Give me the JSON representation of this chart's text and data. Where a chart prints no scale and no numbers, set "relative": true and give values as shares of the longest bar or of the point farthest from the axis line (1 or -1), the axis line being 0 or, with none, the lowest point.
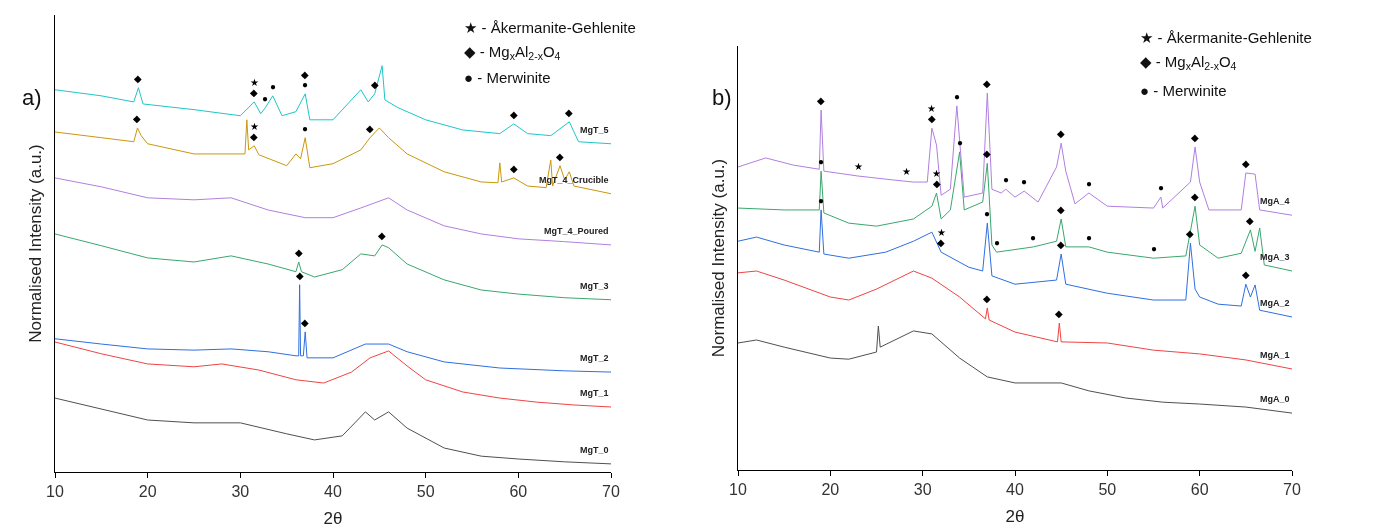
{
  "chart_data": [
    {
      "type": "line",
      "title": "a)",
      "xlabel": "2θ",
      "ylabel": "Normalised Intensity (a.u.)",
      "relative": true,
      "legend": false,
      "grid": false,
      "xlim": [
        10,
        70
      ],
      "xticks": [
        10,
        20,
        30,
        40,
        50,
        60,
        70
      ],
      "annotations": [
        "★ - Åkermanite-Gehlenite",
        "◆ - Mg$_{x}$Al$_{2-x}$O$_{4}$",
        "● - Merwinite",
        {
          "text": "◆",
          "x": 19,
          "y": 0.946
        },
        {
          "text": "◆",
          "x": 31.5,
          "y": 0.911
        },
        {
          "text": "★",
          "x": 31.5,
          "y": 0.911
        },
        {
          "text": "●",
          "x": 32.7,
          "y": 0.897
        },
        {
          "text": "●",
          "x": 33.5,
          "y": 0.926
        },
        {
          "text": "●",
          "x": 37,
          "y": 0.931
        },
        {
          "text": "◆",
          "x": 37,
          "y": 0.931
        },
        {
          "text": "◆",
          "x": 44.5,
          "y": 0.931
        },
        {
          "text": "◆",
          "x": 59.5,
          "y": 0.857
        },
        {
          "text": "◆",
          "x": 65.5,
          "y": 0.862
        },
        {
          "text": "◆",
          "x": 18.9,
          "y": 0.847
        },
        {
          "text": "◆",
          "x": 31.5,
          "y": 0.803
        },
        {
          "text": "★",
          "x": 31.5,
          "y": 0.803
        },
        {
          "text": "●",
          "x": 37,
          "y": 0.823
        },
        {
          "text": "◆",
          "x": 44,
          "y": 0.823
        },
        {
          "text": "◆",
          "x": 59.5,
          "y": 0.724
        },
        {
          "text": "◆",
          "x": 64.5,
          "y": 0.754
        },
        {
          "text": "◆",
          "x": 36.3,
          "y": 0.517
        },
        {
          "text": "◆",
          "x": 45.3,
          "y": 0.559
        },
        {
          "text": "◆",
          "x": 36.4,
          "y": 0.461
        },
        {
          "text": "◆",
          "x": 37,
          "y": 0.345
        }
      ],
      "series": [
        {
          "name": "MgT_0",
          "color": "#505050",
          "x": [
            10,
            20,
            25,
            30,
            35,
            38,
            41,
            43.5,
            44.5,
            46,
            48,
            52,
            56,
            60,
            65,
            70
          ],
          "values": [
            0.182,
            0.128,
            0.121,
            0.121,
            0.094,
            0.079,
            0.089,
            0.148,
            0.128,
            0.148,
            0.108,
            0.059,
            0.039,
            0.032,
            0.025,
            0.02
          ]
        },
        {
          "name": "MgT_1",
          "color": "#ef4444",
          "x": [
            10,
            15,
            20,
            25,
            28,
            32,
            36,
            39,
            42,
            44,
            46,
            48,
            50,
            54,
            58,
            62,
            66,
            70
          ],
          "values": [
            0.32,
            0.291,
            0.266,
            0.259,
            0.266,
            0.251,
            0.227,
            0.219,
            0.246,
            0.281,
            0.298,
            0.261,
            0.227,
            0.197,
            0.182,
            0.172,
            0.165,
            0.16
          ]
        },
        {
          "name": "MgT_2",
          "color": "#2f6fe0",
          "x": [
            10,
            15,
            20,
            25,
            29,
            33,
            36,
            36.3,
            36.4,
            36.5,
            36.8,
            37,
            37.2,
            40,
            43.5,
            46,
            48,
            52,
            58,
            65,
            70
          ],
          "values": [
            0.328,
            0.315,
            0.303,
            0.3,
            0.303,
            0.296,
            0.286,
            0.286,
            0.461,
            0.286,
            0.286,
            0.345,
            0.281,
            0.281,
            0.315,
            0.315,
            0.296,
            0.271,
            0.256,
            0.249,
            0.246
          ]
        },
        {
          "name": "MgT_3",
          "color": "#3aa76d",
          "x": [
            10,
            15,
            20,
            25,
            29,
            33,
            36,
            36.3,
            36.6,
            38,
            41,
            43,
            44.5,
            45.3,
            46,
            48,
            52,
            56,
            60,
            65,
            70
          ],
          "values": [
            0.586,
            0.557,
            0.527,
            0.517,
            0.532,
            0.512,
            0.493,
            0.517,
            0.493,
            0.48,
            0.498,
            0.537,
            0.532,
            0.559,
            0.552,
            0.512,
            0.473,
            0.448,
            0.438,
            0.429,
            0.424
          ]
        },
        {
          "name": "MgT_4_Poured",
          "color": "#b07fe0",
          "x": [
            10,
            15,
            20,
            25,
            29,
            33,
            37,
            40,
            43,
            46,
            48,
            52,
            56,
            60,
            65,
            70
          ],
          "values": [
            0.724,
            0.702,
            0.675,
            0.67,
            0.675,
            0.645,
            0.626,
            0.626,
            0.65,
            0.675,
            0.645,
            0.606,
            0.586,
            0.574,
            0.567,
            0.559
          ]
        },
        {
          "name": "MgT_4_Crucible",
          "color": "#c9980e",
          "x": [
            10,
            15,
            18.5,
            18.9,
            19.3,
            20,
            25,
            30.5,
            30.7,
            30.9,
            31.5,
            32,
            35,
            36,
            36.5,
            37,
            37.5,
            40,
            43,
            44,
            45,
            46,
            48,
            52,
            56,
            57.8,
            58,
            58.2,
            59.5,
            61,
            63,
            63.5,
            63.7,
            64.5,
            65,
            65.5,
            66,
            70
          ],
          "values": [
            0.837,
            0.823,
            0.813,
            0.847,
            0.828,
            0.808,
            0.783,
            0.783,
            0.867,
            0.793,
            0.803,
            0.781,
            0.754,
            0.783,
            0.771,
            0.823,
            0.749,
            0.759,
            0.793,
            0.823,
            0.847,
            0.823,
            0.783,
            0.739,
            0.714,
            0.712,
            0.761,
            0.714,
            0.724,
            0.704,
            0.7,
            0.768,
            0.704,
            0.754,
            0.719,
            0.739,
            0.704,
            0.685
          ]
        },
        {
          "name": "MgT_5",
          "color": "#20c5c8",
          "x": [
            10,
            15,
            18.5,
            19,
            19.5,
            25,
            30,
            31.5,
            32.2,
            32.7,
            33.5,
            34.5,
            36,
            37,
            37.5,
            40,
            43,
            43.8,
            44.5,
            45.3,
            45.6,
            47,
            50,
            54,
            58,
            59.5,
            61,
            63.5,
            65.5,
            66.5,
            70
          ],
          "values": [
            0.941,
            0.926,
            0.911,
            0.946,
            0.906,
            0.892,
            0.877,
            0.911,
            0.882,
            0.897,
            0.926,
            0.877,
            0.887,
            0.931,
            0.867,
            0.867,
            0.941,
            0.911,
            0.931,
            1,
            0.916,
            0.897,
            0.867,
            0.842,
            0.833,
            0.857,
            0.833,
            0.828,
            0.862,
            0.813,
            0.808
          ]
        }
      ]
    },
    {
      "type": "line",
      "title": "b)",
      "xlabel": "2θ",
      "ylabel": "Normalised Intensity (a.u.)",
      "relative": true,
      "legend": false,
      "grid": false,
      "xlim": [
        10,
        70
      ],
      "xticks": [
        10,
        20,
        30,
        40,
        50,
        60,
        70
      ],
      "annotations": [
        "★ - Åkermanite-Gehlenite",
        "◆ - Mg$_{x}$Al$_{2-x}$O$_{4}$",
        "● - Merwinite",
        {
          "text": "◆",
          "x": 19,
          "y": 0.955
        },
        {
          "text": "★",
          "x": 23,
          "y": 0.78
        },
        {
          "text": "★",
          "x": 28.2,
          "y": 0.766
        },
        {
          "text": "◆",
          "x": 31,
          "y": 0.907
        },
        {
          "text": "★",
          "x": 31,
          "y": 0.907
        },
        {
          "text": "●",
          "x": 33.7,
          "y": 0.966
        },
        {
          "text": "◆",
          "x": 37,
          "y": 1
        },
        {
          "text": "◆",
          "x": 45,
          "y": 0.867
        },
        {
          "text": "●",
          "x": 39,
          "y": 0.745
        },
        {
          "text": "●",
          "x": 41,
          "y": 0.74
        },
        {
          "text": "●",
          "x": 48,
          "y": 0.735
        },
        {
          "text": "●",
          "x": 55.8,
          "y": 0.724
        },
        {
          "text": "◆",
          "x": 59.5,
          "y": 0.857
        },
        {
          "text": "◆",
          "x": 65,
          "y": 0.788
        },
        {
          "text": "●",
          "x": 19,
          "y": 0.793
        },
        {
          "text": "◆",
          "x": 31.5,
          "y": 0.735
        },
        {
          "text": "★",
          "x": 31.5,
          "y": 0.735
        },
        {
          "text": "●",
          "x": 34,
          "y": 0.844
        },
        {
          "text": "◆",
          "x": 37,
          "y": 0.814
        },
        {
          "text": "◆",
          "x": 32,
          "y": 0.578
        },
        {
          "text": "★",
          "x": 32,
          "y": 0.578
        },
        {
          "text": "●",
          "x": 38,
          "y": 0.578
        },
        {
          "text": "●",
          "x": 42,
          "y": 0.592
        },
        {
          "text": "●",
          "x": 48,
          "y": 0.592
        },
        {
          "text": "●",
          "x": 55,
          "y": 0.562
        },
        {
          "text": "◆",
          "x": 45,
          "y": 0.666
        },
        {
          "text": "◆",
          "x": 59.5,
          "y": 0.7
        },
        {
          "text": "◆",
          "x": 65.5,
          "y": 0.637
        },
        {
          "text": "●",
          "x": 19,
          "y": 0.69
        },
        {
          "text": "●",
          "x": 37,
          "y": 0.655
        },
        {
          "text": "◆",
          "x": 45,
          "y": 0.573
        },
        {
          "text": "◆",
          "x": 59,
          "y": 0.602
        },
        {
          "text": "◆",
          "x": 65,
          "y": 0.493
        },
        {
          "text": "◆",
          "x": 37,
          "y": 0.43
        },
        {
          "text": "◆",
          "x": 44.8,
          "y": 0.39
        }
      ],
      "series": [
        {
          "name": "MgA_0",
          "color": "#505050",
          "x": [
            10,
            12,
            15,
            20,
            22,
            25,
            25.2,
            25.4,
            29,
            31,
            34,
            37,
            40,
            45,
            48,
            52,
            56,
            60,
            65,
            70
          ],
          "values": [
            0.337,
            0.345,
            0.326,
            0.297,
            0.294,
            0.313,
            0.382,
            0.326,
            0.369,
            0.361,
            0.297,
            0.247,
            0.231,
            0.231,
            0.21,
            0.191,
            0.18,
            0.175,
            0.167,
            0.151
          ]
        },
        {
          "name": "MgA_1",
          "color": "#ef4444",
          "x": [
            10,
            12,
            15,
            20,
            22,
            25,
            29,
            31,
            34,
            36.8,
            37,
            37.2,
            40,
            44.6,
            44.8,
            45,
            50,
            55,
            60,
            65,
            70
          ],
          "values": [
            0.523,
            0.528,
            0.504,
            0.459,
            0.451,
            0.48,
            0.528,
            0.509,
            0.459,
            0.401,
            0.43,
            0.398,
            0.366,
            0.34,
            0.39,
            0.34,
            0.337,
            0.318,
            0.308,
            0.292,
            0.268
          ]
        },
        {
          "name": "MgA_2",
          "color": "#2f6fe0",
          "x": [
            10,
            12,
            15,
            18.8,
            19,
            19.3,
            22,
            26,
            29,
            31,
            32,
            35,
            36.5,
            37,
            37.5,
            40,
            44.5,
            45,
            45.5,
            50,
            55,
            58.5,
            59,
            59.5,
            60,
            62,
            64.5,
            65,
            65.5,
            66,
            66.5,
            70
          ],
          "values": [
            0.607,
            0.618,
            0.597,
            0.578,
            0.69,
            0.573,
            0.562,
            0.578,
            0.607,
            0.631,
            0.578,
            0.538,
            0.528,
            0.655,
            0.515,
            0.493,
            0.504,
            0.573,
            0.493,
            0.469,
            0.451,
            0.451,
            0.602,
            0.48,
            0.459,
            0.44,
            0.435,
            0.493,
            0.459,
            0.491,
            0.424,
            0.406
          ]
        },
        {
          "name": "MgA_3",
          "color": "#3aa76d",
          "x": [
            10,
            15,
            18.8,
            19,
            19.3,
            22,
            25,
            29,
            31,
            31.5,
            32,
            33,
            34,
            34.5,
            36.5,
            37,
            37.5,
            38,
            42,
            44.5,
            45,
            45.5,
            48,
            50,
            55,
            58.5,
            59.5,
            60,
            62,
            64.5,
            65.5,
            66,
            66.5,
            67,
            70
          ],
          "values": [
            0.695,
            0.69,
            0.69,
            0.793,
            0.682,
            0.655,
            0.647,
            0.666,
            0.7,
            0.735,
            0.666,
            0.69,
            0.844,
            0.69,
            0.711,
            0.814,
            0.597,
            0.578,
            0.592,
            0.607,
            0.666,
            0.592,
            0.592,
            0.578,
            0.562,
            0.568,
            0.7,
            0.597,
            0.562,
            0.575,
            0.637,
            0.58,
            0.642,
            0.544,
            0.528
          ]
        },
        {
          "name": "MgA_4",
          "color": "#b07fe0",
          "x": [
            10,
            13,
            16,
            18.8,
            19,
            19.3,
            23,
            27,
            28.2,
            29,
            30.5,
            31,
            31.5,
            32,
            33,
            33.7,
            34.5,
            36.5,
            37,
            37.5,
            38.5,
            39,
            40,
            41,
            42.5,
            44.5,
            45,
            45.5,
            46.5,
            48,
            50,
            55,
            55.8,
            56,
            59,
            59.5,
            60,
            61,
            64.5,
            65,
            66,
            66.5,
            70
          ],
          "values": [
            0.804,
            0.828,
            0.809,
            0.798,
            0.955,
            0.793,
            0.78,
            0.769,
            0.766,
            0.764,
            0.764,
            0.907,
            0.862,
            0.729,
            0.745,
            0.966,
            0.724,
            0.735,
            1,
            0.745,
            0.735,
            0.745,
            0.724,
            0.74,
            0.711,
            0.804,
            0.867,
            0.793,
            0.706,
            0.735,
            0.7,
            0.695,
            0.724,
            0.695,
            0.764,
            0.857,
            0.764,
            0.69,
            0.69,
            0.788,
            0.785,
            0.69,
            0.676
          ]
        }
      ]
    }
  ]
}
